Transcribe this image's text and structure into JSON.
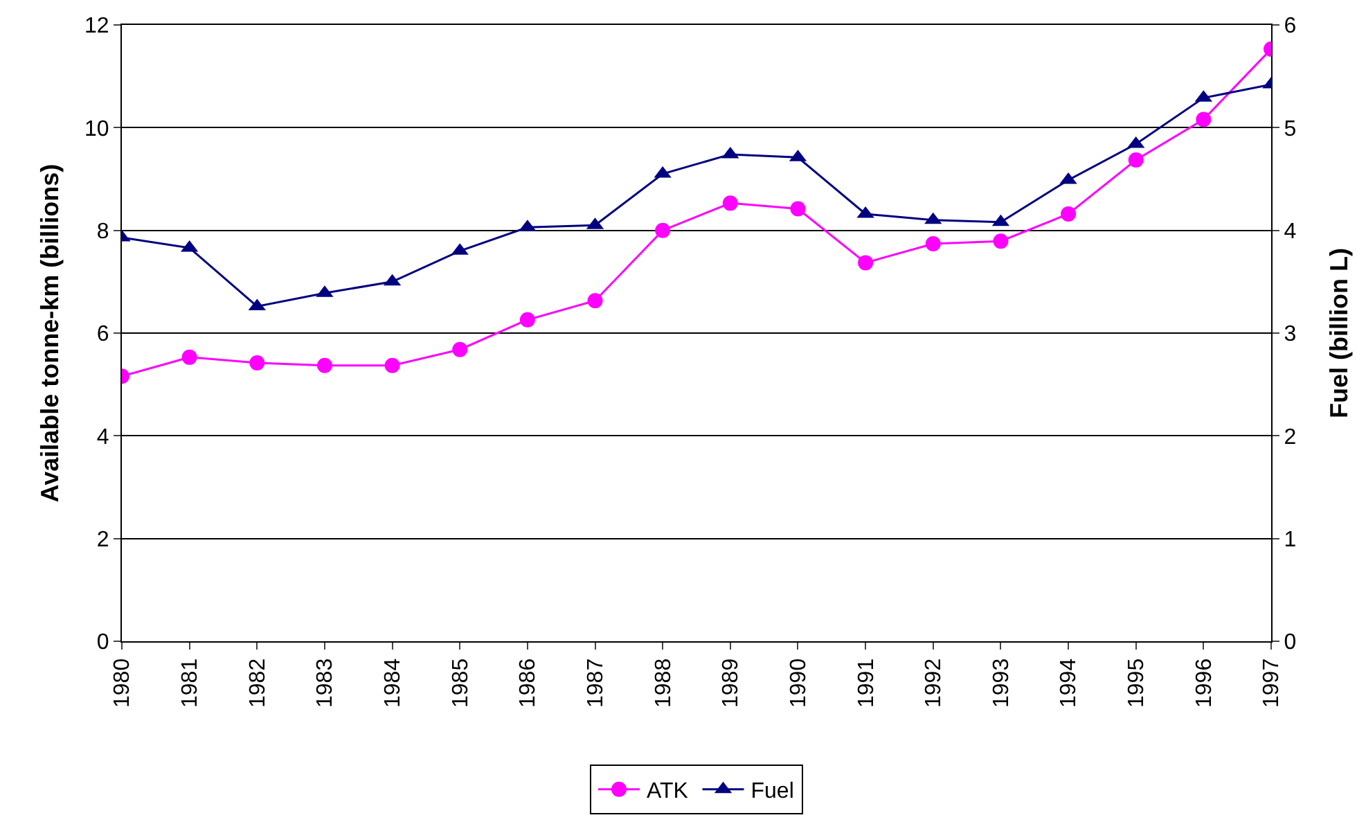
{
  "chart_data": {
    "type": "line",
    "ylabel": "Available tonne-km (billions)",
    "y2label": "Fuel (billion L)",
    "categories": [
      "1980",
      "1981",
      "1982",
      "1983",
      "1984",
      "1985",
      "1986",
      "1987",
      "1988",
      "1989",
      "1990",
      "1991",
      "1992",
      "1993",
      "1994",
      "1995",
      "1996",
      "1997"
    ],
    "series": [
      {
        "name": "ATK",
        "color": "#ff00ff",
        "marker": "circle",
        "values": [
          5.16,
          5.53,
          5.42,
          5.37,
          5.37,
          5.68,
          6.26,
          6.63,
          8.0,
          8.53,
          8.42,
          7.37,
          7.74,
          7.79,
          8.32,
          9.37,
          10.16,
          11.53
        ]
      },
      {
        "name": "Fuel",
        "color": "#000080",
        "marker": "triangle",
        "axis": "y2",
        "values": [
          3.93,
          3.83,
          3.26,
          3.39,
          3.5,
          3.8,
          4.03,
          4.05,
          4.55,
          4.74,
          4.71,
          4.16,
          4.1,
          4.08,
          4.49,
          4.84,
          5.29,
          5.42
        ]
      }
    ],
    "ylim": [
      0,
      12
    ],
    "yticks": [
      0,
      2,
      4,
      6,
      8,
      10,
      12
    ],
    "y2lim": [
      0,
      6
    ],
    "y2ticks": [
      0,
      1,
      2,
      3,
      4,
      5,
      6
    ],
    "grid": "y",
    "legend": "bottom"
  }
}
